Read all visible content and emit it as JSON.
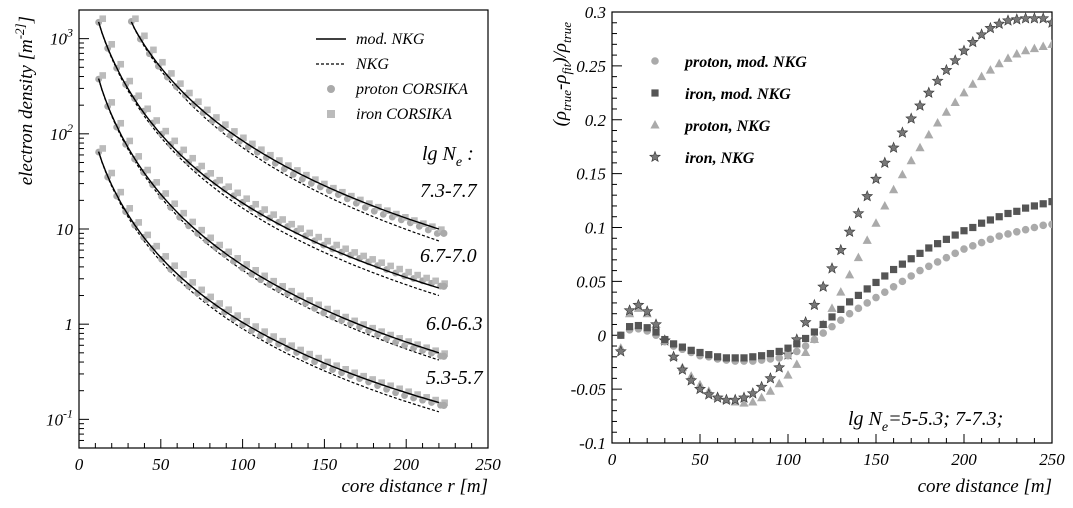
{
  "chart_data": [
    {
      "type": "line",
      "xlabel": "core distance r [m]",
      "ylabel": "electron density [m^-2]",
      "xlim": [
        0,
        250
      ],
      "ylim": [
        0.05,
        2000
      ],
      "y_scale": "log",
      "x_ticks": [
        "0",
        "50",
        "100",
        "150",
        "200",
        "250"
      ],
      "y_ticks": [
        {
          "value": 0.1,
          "label": "10",
          "exp": "-1"
        },
        {
          "value": 1,
          "label": "1",
          "exp": ""
        },
        {
          "value": 10,
          "label": "10",
          "exp": ""
        },
        {
          "value": 100,
          "label": "10",
          "exp": "2"
        },
        {
          "value": 1000,
          "label": "10",
          "exp": "3"
        }
      ],
      "legend_position": "top-right",
      "legend": [
        {
          "label": "mod. NKG",
          "style": "solid-line"
        },
        {
          "label": "NKG",
          "style": "dashed-line"
        },
        {
          "label": "proton CORSIKA",
          "style": "circle-marker"
        },
        {
          "label": "iron CORSIKA",
          "style": "square-marker"
        }
      ],
      "annotation_title": {
        "main": "lg N",
        "sub": "e",
        "tail": " :"
      },
      "series": [
        {
          "label": "7.3-7.7",
          "x_start": 32,
          "x_end": 220,
          "norm": 1500,
          "modnkg_end": 10,
          "nkg_end": 7.5,
          "proton_end": 9
        },
        {
          "label": "6.7-7.0",
          "x_start": 12,
          "x_end": 220,
          "norm": 1500,
          "modnkg_end": 2.4,
          "nkg_end": 2.0,
          "proton_end": 2.5
        },
        {
          "label": "6.0-6.3",
          "x_start": 12,
          "x_end": 220,
          "norm": 380,
          "modnkg_end": 0.5,
          "nkg_end": 0.42,
          "proton_end": 0.46
        },
        {
          "label": "5.3-5.7",
          "x_start": 12,
          "x_end": 220,
          "norm": 65,
          "modnkg_end": 0.15,
          "nkg_end": 0.12,
          "proton_end": 0.14
        }
      ]
    },
    {
      "type": "scatter",
      "xlabel": "core distance [m]",
      "ylabel": "(ρtrue-ρfit)/ρtrue",
      "xlim": [
        0,
        250
      ],
      "ylim": [
        -0.1,
        0.3
      ],
      "x_ticks": [
        "0",
        "50",
        "100",
        "150",
        "200",
        "250"
      ],
      "y_ticks": [
        "-0.1",
        "-0.05",
        "0",
        "0.05",
        "0.1",
        "0.15",
        "0.2",
        "0.25",
        "0.3"
      ],
      "legend_position": "top-left",
      "annotation": {
        "main": "lg N",
        "sub": "e",
        "tail": "=5-5.3; 7-7.3;"
      },
      "series": [
        {
          "name": "proton, mod. NKG",
          "marker": "circle",
          "color": "#aaaaaa",
          "points": [
            [
              5,
              0.0
            ],
            [
              10,
              0.005
            ],
            [
              15,
              0.006
            ],
            [
              20,
              0.004
            ],
            [
              25,
              0.0
            ],
            [
              30,
              -0.006
            ],
            [
              35,
              -0.01
            ],
            [
              40,
              -0.013
            ],
            [
              45,
              -0.016
            ],
            [
              50,
              -0.019
            ],
            [
              55,
              -0.02
            ],
            [
              60,
              -0.022
            ],
            [
              65,
              -0.023
            ],
            [
              70,
              -0.024
            ],
            [
              75,
              -0.024
            ],
            [
              80,
              -0.024
            ],
            [
              85,
              -0.023
            ],
            [
              90,
              -0.022
            ],
            [
              95,
              -0.021
            ],
            [
              100,
              -0.019
            ],
            [
              105,
              -0.015
            ],
            [
              110,
              -0.01
            ],
            [
              115,
              -0.004
            ],
            [
              120,
              0.002
            ],
            [
              125,
              0.008
            ],
            [
              130,
              0.014
            ],
            [
              135,
              0.02
            ],
            [
              140,
              0.025
            ],
            [
              145,
              0.03
            ],
            [
              150,
              0.035
            ],
            [
              155,
              0.04
            ],
            [
              160,
              0.045
            ],
            [
              165,
              0.05
            ],
            [
              170,
              0.055
            ],
            [
              175,
              0.06
            ],
            [
              180,
              0.064
            ],
            [
              185,
              0.068
            ],
            [
              190,
              0.072
            ],
            [
              195,
              0.076
            ],
            [
              200,
              0.08
            ],
            [
              205,
              0.083
            ],
            [
              210,
              0.086
            ],
            [
              215,
              0.089
            ],
            [
              220,
              0.092
            ],
            [
              225,
              0.094
            ],
            [
              230,
              0.096
            ],
            [
              235,
              0.098
            ],
            [
              240,
              0.1
            ],
            [
              245,
              0.102
            ],
            [
              250,
              0.103
            ]
          ]
        },
        {
          "name": "iron, mod. NKG",
          "marker": "square",
          "color": "#555555",
          "points": [
            [
              5,
              0.0
            ],
            [
              10,
              0.008
            ],
            [
              15,
              0.009
            ],
            [
              20,
              0.007
            ],
            [
              25,
              0.003
            ],
            [
              30,
              -0.004
            ],
            [
              35,
              -0.008
            ],
            [
              40,
              -0.011
            ],
            [
              45,
              -0.014
            ],
            [
              50,
              -0.016
            ],
            [
              55,
              -0.018
            ],
            [
              60,
              -0.02
            ],
            [
              65,
              -0.021
            ],
            [
              70,
              -0.021
            ],
            [
              75,
              -0.021
            ],
            [
              80,
              -0.02
            ],
            [
              85,
              -0.019
            ],
            [
              90,
              -0.017
            ],
            [
              95,
              -0.015
            ],
            [
              100,
              -0.012
            ],
            [
              105,
              -0.008
            ],
            [
              110,
              -0.003
            ],
            [
              115,
              0.003
            ],
            [
              120,
              0.01
            ],
            [
              125,
              0.017
            ],
            [
              130,
              0.024
            ],
            [
              135,
              0.031
            ],
            [
              140,
              0.037
            ],
            [
              145,
              0.043
            ],
            [
              150,
              0.049
            ],
            [
              155,
              0.055
            ],
            [
              160,
              0.061
            ],
            [
              165,
              0.066
            ],
            [
              170,
              0.071
            ],
            [
              175,
              0.076
            ],
            [
              180,
              0.081
            ],
            [
              185,
              0.085
            ],
            [
              190,
              0.089
            ],
            [
              195,
              0.093
            ],
            [
              200,
              0.097
            ],
            [
              205,
              0.1
            ],
            [
              210,
              0.104
            ],
            [
              215,
              0.107
            ],
            [
              220,
              0.11
            ],
            [
              225,
              0.113
            ],
            [
              230,
              0.115
            ],
            [
              235,
              0.118
            ],
            [
              240,
              0.12
            ],
            [
              245,
              0.122
            ],
            [
              250,
              0.124
            ]
          ]
        },
        {
          "name": "proton, NKG",
          "marker": "triangle",
          "color": "#aaaaaa",
          "points": [
            [
              5,
              -0.012
            ],
            [
              10,
              0.02
            ],
            [
              15,
              0.025
            ],
            [
              20,
              0.02
            ],
            [
              25,
              0.01
            ],
            [
              30,
              -0.005
            ],
            [
              35,
              -0.02
            ],
            [
              40,
              -0.03
            ],
            [
              45,
              -0.038
            ],
            [
              50,
              -0.046
            ],
            [
              55,
              -0.052
            ],
            [
              60,
              -0.057
            ],
            [
              65,
              -0.06
            ],
            [
              70,
              -0.062
            ],
            [
              75,
              -0.063
            ],
            [
              80,
              -0.062
            ],
            [
              85,
              -0.058
            ],
            [
              90,
              -0.052
            ],
            [
              95,
              -0.045
            ],
            [
              100,
              -0.037
            ],
            [
              105,
              -0.027
            ],
            [
              110,
              -0.016
            ],
            [
              115,
              -0.004
            ],
            [
              120,
              0.01
            ],
            [
              125,
              0.025
            ],
            [
              130,
              0.04
            ],
            [
              135,
              0.056
            ],
            [
              140,
              0.072
            ],
            [
              145,
              0.088
            ],
            [
              150,
              0.104
            ],
            [
              155,
              0.12
            ],
            [
              160,
              0.135
            ],
            [
              165,
              0.149
            ],
            [
              170,
              0.162
            ],
            [
              175,
              0.174
            ],
            [
              180,
              0.186
            ],
            [
              185,
              0.197
            ],
            [
              190,
              0.207
            ],
            [
              195,
              0.216
            ],
            [
              200,
              0.225
            ],
            [
              205,
              0.233
            ],
            [
              210,
              0.24
            ],
            [
              215,
              0.246
            ],
            [
              220,
              0.252
            ],
            [
              225,
              0.257
            ],
            [
              230,
              0.261
            ],
            [
              235,
              0.264
            ],
            [
              240,
              0.266
            ],
            [
              245,
              0.268
            ],
            [
              250,
              0.27
            ]
          ]
        },
        {
          "name": "iron, NKG",
          "marker": "star",
          "color": "#777777",
          "points": [
            [
              5,
              -0.015
            ],
            [
              10,
              0.023
            ],
            [
              15,
              0.028
            ],
            [
              20,
              0.022
            ],
            [
              25,
              0.01
            ],
            [
              30,
              -0.005
            ],
            [
              35,
              -0.02
            ],
            [
              40,
              -0.032
            ],
            [
              45,
              -0.042
            ],
            [
              50,
              -0.05
            ],
            [
              55,
              -0.055
            ],
            [
              60,
              -0.058
            ],
            [
              65,
              -0.06
            ],
            [
              70,
              -0.06
            ],
            [
              75,
              -0.058
            ],
            [
              80,
              -0.054
            ],
            [
              85,
              -0.048
            ],
            [
              90,
              -0.04
            ],
            [
              95,
              -0.03
            ],
            [
              100,
              -0.018
            ],
            [
              105,
              -0.004
            ],
            [
              110,
              0.012
            ],
            [
              115,
              0.028
            ],
            [
              120,
              0.045
            ],
            [
              125,
              0.062
            ],
            [
              130,
              0.079
            ],
            [
              135,
              0.096
            ],
            [
              140,
              0.113
            ],
            [
              145,
              0.129
            ],
            [
              150,
              0.145
            ],
            [
              155,
              0.16
            ],
            [
              160,
              0.174
            ],
            [
              165,
              0.188
            ],
            [
              170,
              0.201
            ],
            [
              175,
              0.213
            ],
            [
              180,
              0.225
            ],
            [
              185,
              0.236
            ],
            [
              190,
              0.246
            ],
            [
              195,
              0.255
            ],
            [
              200,
              0.264
            ],
            [
              205,
              0.272
            ],
            [
              210,
              0.279
            ],
            [
              215,
              0.285
            ],
            [
              220,
              0.289
            ],
            [
              225,
              0.292
            ],
            [
              230,
              0.293
            ],
            [
              235,
              0.294
            ],
            [
              240,
              0.294
            ],
            [
              245,
              0.294
            ],
            [
              250,
              0.29
            ]
          ]
        }
      ]
    }
  ],
  "colors": {
    "proton_marker": "#aaaaaa",
    "iron_marker_left": "#bbbbbb",
    "text": "#000000"
  }
}
